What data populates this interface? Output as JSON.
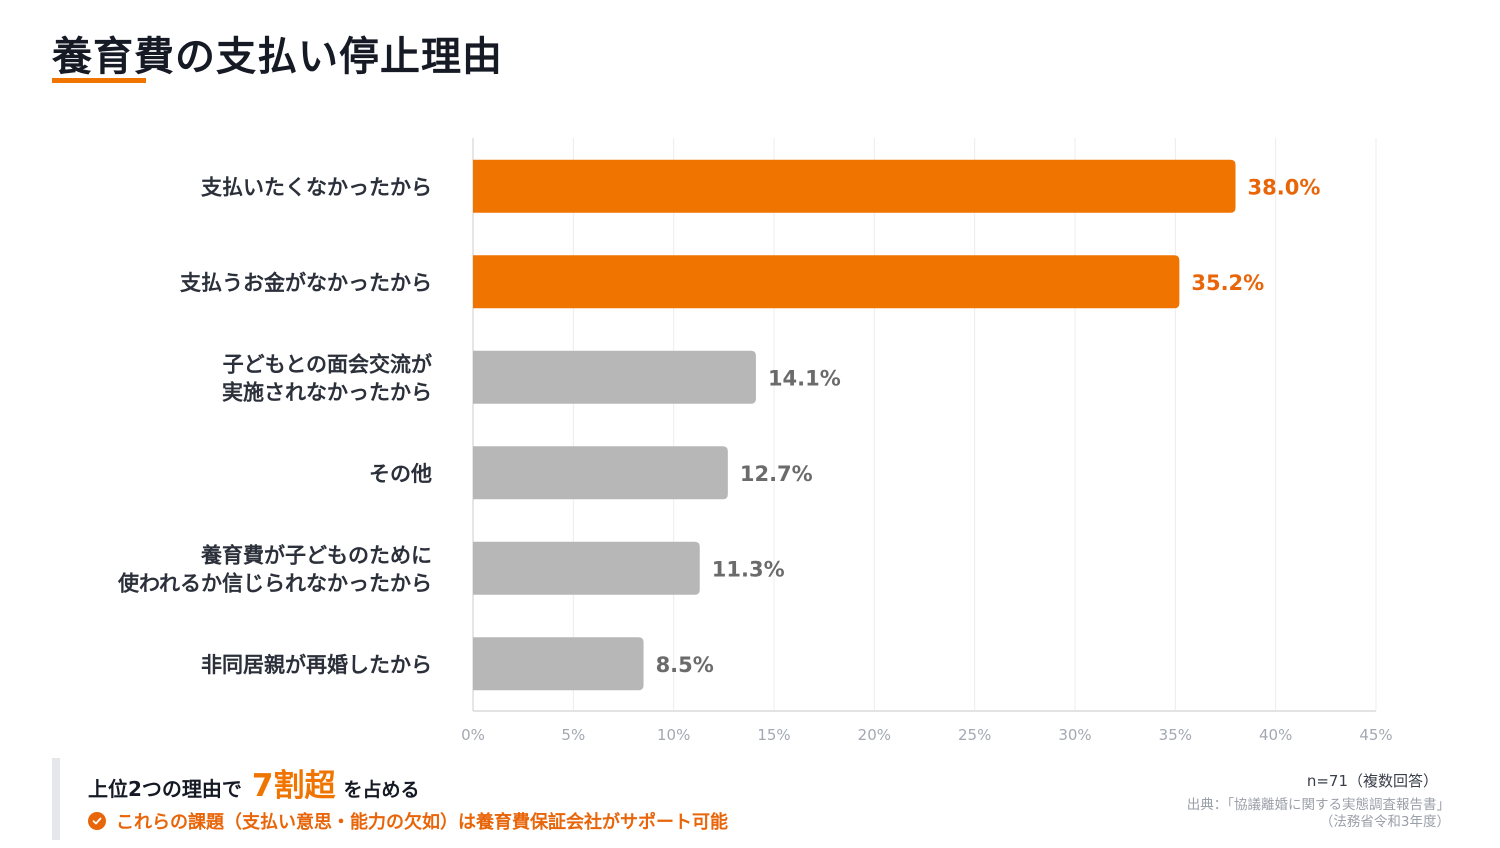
{
  "title": "養育費の支払い停止理由",
  "colors": {
    "accent": "#f07400",
    "accent_text": "#e8650a",
    "bar_gray": "#b7b7b7",
    "gray_text": "#6b6b6b",
    "grid": "#ececec"
  },
  "chart_data": {
    "type": "bar",
    "orientation": "horizontal",
    "title": "養育費の支払い停止理由",
    "xlabel": "",
    "ylabel": "",
    "xlim": [
      0,
      45
    ],
    "x_ticks": [
      0,
      5,
      10,
      15,
      20,
      25,
      30,
      35,
      40,
      45
    ],
    "x_tick_labels": [
      "0%",
      "5%",
      "10%",
      "15%",
      "20%",
      "25%",
      "30%",
      "35%",
      "40%",
      "45%"
    ],
    "grid": true,
    "categories": [
      [
        "支払いたくなかったから"
      ],
      [
        "支払うお金がなかったから"
      ],
      [
        "子どもとの面会交流が",
        "実施されなかったから"
      ],
      [
        "その他"
      ],
      [
        "養育費が子どものために",
        "使われるか信じられなかったから"
      ],
      [
        "非同居親が再婚したから"
      ]
    ],
    "values": [
      38.0,
      35.2,
      14.1,
      12.7,
      11.3,
      8.5
    ],
    "value_labels": [
      "38.0%",
      "35.2%",
      "14.1%",
      "12.7%",
      "11.3%",
      "8.5%"
    ],
    "highlighted": [
      true,
      true,
      false,
      false,
      false,
      false
    ]
  },
  "summary": {
    "line1_prefix": "上位2つの理由で",
    "line1_highlight": "7割超",
    "line1_suffix": "を占める",
    "line2": "これらの課題（支払い意思・能力の欠如）は養育費保証会社がサポート可能",
    "line2_icon": "check-circle-icon"
  },
  "notes": {
    "sample": "n=71（複数回答）",
    "source_line1": "出典：「協議離婚に関する実態調査報告書」",
    "source_line2": "（法務省令和3年度）"
  }
}
